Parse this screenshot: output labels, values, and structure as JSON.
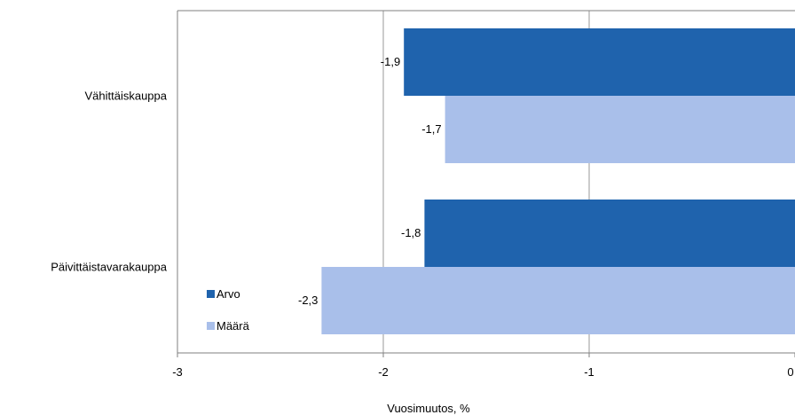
{
  "chart_data": {
    "type": "bar",
    "orientation": "horizontal",
    "categories": [
      "Vähittäiskauppa",
      "Päivittäistavarakauppa"
    ],
    "series": [
      {
        "name": "Arvo",
        "values": [
          -1.9,
          -1.8
        ],
        "labels": [
          "-1,9",
          "-1,8"
        ],
        "color": "#1f63ad"
      },
      {
        "name": "Määrä",
        "values": [
          -1.7,
          -2.3
        ],
        "labels": [
          "-1,7",
          "-2,3"
        ],
        "color": "#a9bfea"
      }
    ],
    "xlabel": "Vuosimuutos, %",
    "ylabel": "",
    "title": "",
    "xlim": [
      -3,
      0
    ],
    "xticks": [
      -3,
      -2,
      -1,
      0
    ],
    "xtick_labels": [
      "-3",
      "-2",
      "-1",
      "0"
    ],
    "grid": true,
    "legend_position": "bottom-left"
  }
}
